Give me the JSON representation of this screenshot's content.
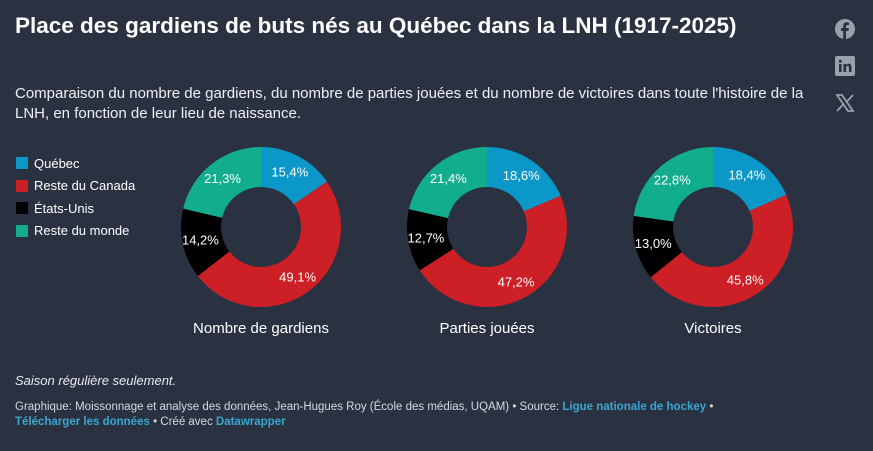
{
  "title": "Place des gardiens de buts nés au Québec dans la LNH (1917-2025)",
  "subtitle": "Comparaison du nombre de gardiens, du nombre de parties jouées et du nombre de victoires dans toute l'histoire de la LNH, en fonction de leur lieu de naissance.",
  "social": [
    "facebook-icon",
    "linkedin-icon",
    "x-icon"
  ],
  "chart_data": {
    "type": "pie",
    "variant": "donut",
    "legend_position": "left",
    "categories": [
      "Québec",
      "Reste du Canada",
      "États-Unis",
      "Reste du monde"
    ],
    "colors": [
      "#0b98c8",
      "#cc1f26",
      "#000000",
      "#12ad8d"
    ],
    "charts": [
      {
        "title": "Nombre de gardiens",
        "values": [
          15.4,
          49.1,
          14.2,
          21.3
        ],
        "labels": [
          "15,4%",
          "49,1%",
          "14,2%",
          "21,3%"
        ]
      },
      {
        "title": "Parties jouées",
        "values": [
          18.6,
          47.2,
          12.7,
          21.4
        ],
        "labels": [
          "18,6%",
          "47,2%",
          "12,7%",
          "21,4%"
        ]
      },
      {
        "title": "Victoires",
        "values": [
          18.4,
          45.8,
          13.0,
          22.8
        ],
        "labels": [
          "18,4%",
          "45,8%",
          "13,0%",
          "22,8%"
        ]
      }
    ]
  },
  "note": "Saison régulière seulement.",
  "footer": {
    "credit": "Graphique: Moissonnage et analyse des données, Jean-Hugues Roy (École des médias, UQAM) • Source: ",
    "source_link": "Ligue nationale de hockey",
    "sep1": " • ",
    "download_link": "Télécharger les données",
    "made_with": " • Créé avec ",
    "datawrapper_link": "Datawrapper"
  }
}
